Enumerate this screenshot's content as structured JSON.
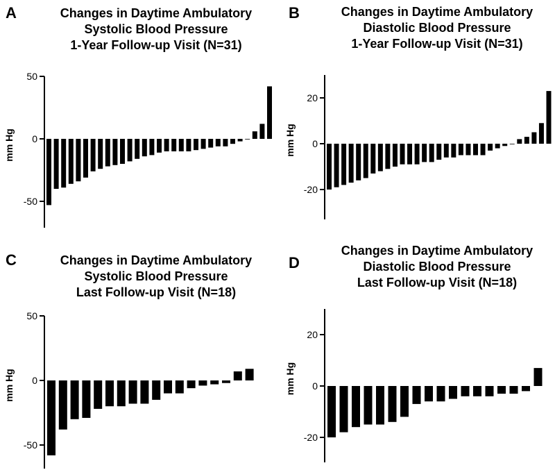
{
  "panels": [
    {
      "letter": "A",
      "title": [
        "Changes in Daytime Ambulatory",
        "Systolic Blood Pressure",
        "1-Year Follow-up Visit (N=31)"
      ]
    },
    {
      "letter": "B",
      "title": [
        "Changes in Daytime Ambulatory",
        "Diastolic Blood Pressure",
        "1-Year Follow-up Visit (N=31)"
      ]
    },
    {
      "letter": "C",
      "title": [
        "Changes in Daytime Ambulatory",
        "Systolic Blood Pressure",
        "Last Follow-up Visit (N=18)"
      ]
    },
    {
      "letter": "D",
      "title": [
        "Changes in Daytime Ambulatory",
        "Diastolic Blood Pressure",
        "Last Follow-up Visit (N=18)"
      ]
    }
  ],
  "chart_data": [
    {
      "type": "bar",
      "title": "Changes in Daytime Ambulatory Systolic Blood Pressure 1-Year Follow-up Visit (N=31)",
      "ylabel": "mm Hg",
      "ylim": [
        -70,
        50
      ],
      "yticks": [
        50,
        0,
        -50
      ],
      "ytick_labels": [
        "50",
        "0",
        "-50"
      ],
      "grid": false,
      "bar_color": "#000000",
      "values": [
        -53,
        -40,
        -39,
        -36,
        -34,
        -31,
        -26,
        -24,
        -22,
        -21,
        -20,
        -18,
        -16,
        -14,
        -13,
        -11,
        -10,
        -10,
        -10,
        -10,
        -9,
        -8,
        -7,
        -6,
        -6,
        -4,
        -2,
        0,
        6,
        12,
        42
      ]
    },
    {
      "type": "bar",
      "title": "Changes in Daytime Ambulatory Diastolic Blood Pressure 1-Year Follow-up Visit (N=31)",
      "ylabel": "mm Hg",
      "ylim": [
        -30,
        30
      ],
      "yticks": [
        20,
        0,
        -20
      ],
      "ytick_labels": [
        "20",
        "0",
        "-20"
      ],
      "grid": false,
      "bar_color": "#000000",
      "values": [
        -20,
        -19,
        -18,
        -17,
        -16,
        -15,
        -13,
        -12,
        -11,
        -10,
        -9,
        -9,
        -9,
        -8,
        -8,
        -7,
        -6,
        -6,
        -5,
        -5,
        -5,
        -5,
        -3,
        -2,
        -1,
        0,
        2,
        3,
        5,
        9,
        23
      ]
    },
    {
      "type": "bar",
      "title": "Changes in Daytime Ambulatory Systolic Blood Pressure Last Follow-up Visit (N=18)",
      "ylabel": "mm Hg",
      "ylim": [
        -70,
        50
      ],
      "yticks": [
        50,
        0,
        -50
      ],
      "ytick_labels": [
        "50",
        "0",
        "-50"
      ],
      "grid": false,
      "bar_color": "#000000",
      "values": [
        -58,
        -38,
        -30,
        -29,
        -22,
        -20,
        -20,
        -18,
        -18,
        -15,
        -10,
        -10,
        -6,
        -4,
        -3,
        -2,
        7,
        9
      ]
    },
    {
      "type": "bar",
      "title": "Changes in Daytime Ambulatory Diastolic Blood Pressure Last Follow-up Visit (N=18)",
      "ylabel": "mm Hg",
      "ylim": [
        -30,
        30
      ],
      "yticks": [
        20,
        0,
        -20
      ],
      "ytick_labels": [
        "20",
        "0",
        "-20"
      ],
      "grid": false,
      "bar_color": "#000000",
      "values": [
        -20,
        -18,
        -16,
        -15,
        -15,
        -14,
        -12,
        -7,
        -6,
        -6,
        -5,
        -4,
        -4,
        -4,
        -3,
        -3,
        -2,
        7
      ]
    }
  ]
}
